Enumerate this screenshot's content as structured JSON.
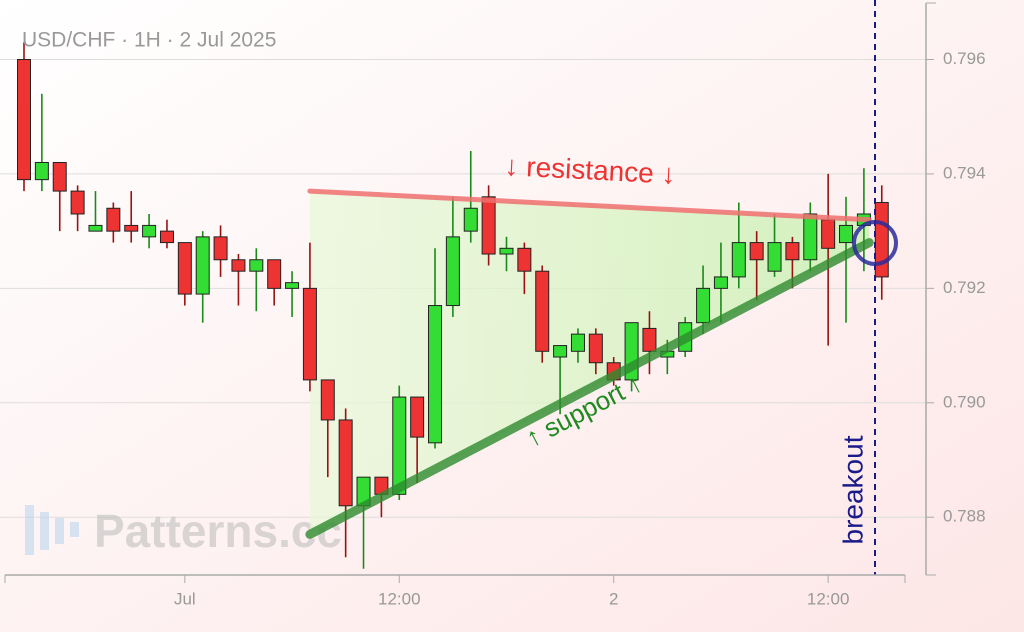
{
  "chart_data": {
    "type": "candlestick",
    "title": "USD/CHF · 1H · 2 Jul 2025",
    "watermark": "Patterns.cc",
    "categories": [
      null,
      null,
      null,
      null,
      null,
      null,
      null,
      null,
      null,
      "Jul",
      null,
      null,
      null,
      null,
      null,
      null,
      null,
      null,
      null,
      null,
      null,
      "12:00",
      null,
      null,
      null,
      null,
      null,
      null,
      null,
      null,
      null,
      null,
      null,
      "2",
      null,
      null,
      null,
      null,
      null,
      null,
      null,
      null,
      null,
      null,
      null,
      "12:00",
      null,
      null,
      null
    ],
    "open": [
      0.796,
      0.7939,
      0.7942,
      0.7937,
      0.793,
      0.7934,
      0.7931,
      0.7929,
      0.793,
      0.7928,
      0.7919,
      0.7929,
      0.7925,
      0.7923,
      0.7925,
      0.792,
      0.792,
      0.7904,
      0.7897,
      0.7882,
      0.7887,
      0.7884,
      0.7901,
      0.7893,
      0.7917,
      0.793,
      0.7936,
      0.7926,
      0.7927,
      0.7923,
      0.7908,
      0.7909,
      0.7912,
      0.7907,
      0.7904,
      0.7913,
      0.7908,
      0.7909,
      0.7914,
      0.792,
      0.7922,
      0.7928,
      0.7923,
      0.7928,
      0.7925,
      0.7932,
      0.7928,
      0.7931,
      0.7935
    ],
    "high": [
      0.7963,
      0.7954,
      0.7942,
      0.7938,
      0.7937,
      0.7935,
      0.7937,
      0.7933,
      0.7932,
      0.7928,
      0.793,
      0.7931,
      0.7926,
      0.7927,
      0.7925,
      0.7923,
      0.7928,
      0.7904,
      0.7899,
      0.7887,
      0.7887,
      0.7903,
      0.7901,
      0.7927,
      0.7936,
      0.7944,
      0.7938,
      0.7929,
      0.7928,
      0.7924,
      0.791,
      0.7913,
      0.7913,
      0.7908,
      0.7914,
      0.7916,
      0.7911,
      0.7915,
      0.7924,
      0.7928,
      0.7935,
      0.793,
      0.7933,
      0.7929,
      0.7935,
      0.794,
      0.7936,
      0.7941,
      0.7938
    ],
    "low": [
      0.7937,
      0.7937,
      0.793,
      0.793,
      0.793,
      0.7928,
      0.7928,
      0.7927,
      0.7927,
      0.7917,
      0.7914,
      0.7922,
      0.7917,
      0.7916,
      0.7917,
      0.7915,
      0.7902,
      0.7887,
      0.7873,
      0.7871,
      0.788,
      0.7883,
      0.7886,
      0.7892,
      0.7915,
      0.7928,
      0.7924,
      0.7923,
      0.7919,
      0.7907,
      0.7898,
      0.7907,
      0.7905,
      0.7903,
      0.7902,
      0.7905,
      0.7905,
      0.7908,
      0.7912,
      0.7914,
      0.792,
      0.7918,
      0.7922,
      0.792,
      0.7923,
      0.791,
      0.7914,
      0.7923,
      0.7918
    ],
    "close": [
      0.7939,
      0.7942,
      0.7937,
      0.7933,
      0.7931,
      0.793,
      0.793,
      0.7931,
      0.7928,
      0.7919,
      0.7929,
      0.7925,
      0.7923,
      0.7925,
      0.792,
      0.7921,
      0.7904,
      0.7897,
      0.7882,
      0.7887,
      0.7884,
      0.7901,
      0.7894,
      0.7917,
      0.7929,
      0.7934,
      0.7926,
      0.7927,
      0.7923,
      0.7909,
      0.791,
      0.7912,
      0.7907,
      0.7904,
      0.7914,
      0.7909,
      0.7909,
      0.7914,
      0.792,
      0.7922,
      0.7928,
      0.7925,
      0.7928,
      0.7925,
      0.7933,
      0.7927,
      0.7931,
      0.7933,
      0.7922
    ],
    "up_color": "#33dd33",
    "down_color": "#ee3333",
    "ylim": [
      0.78699,
      0.79704
    ],
    "yticks": [
      0.788,
      {
        "value": 0.79,
        "label": "0.790"
      },
      0.792,
      0.794,
      0.796
    ],
    "grid": true,
    "resistance_line": [
      0.7937,
      0.7932
    ],
    "support_line": [
      0.7877,
      0.7928
    ],
    "annotations": {
      "resistance": "↓ resistance ↓",
      "support": "↑ support ↑",
      "breakout": "breakout"
    }
  }
}
